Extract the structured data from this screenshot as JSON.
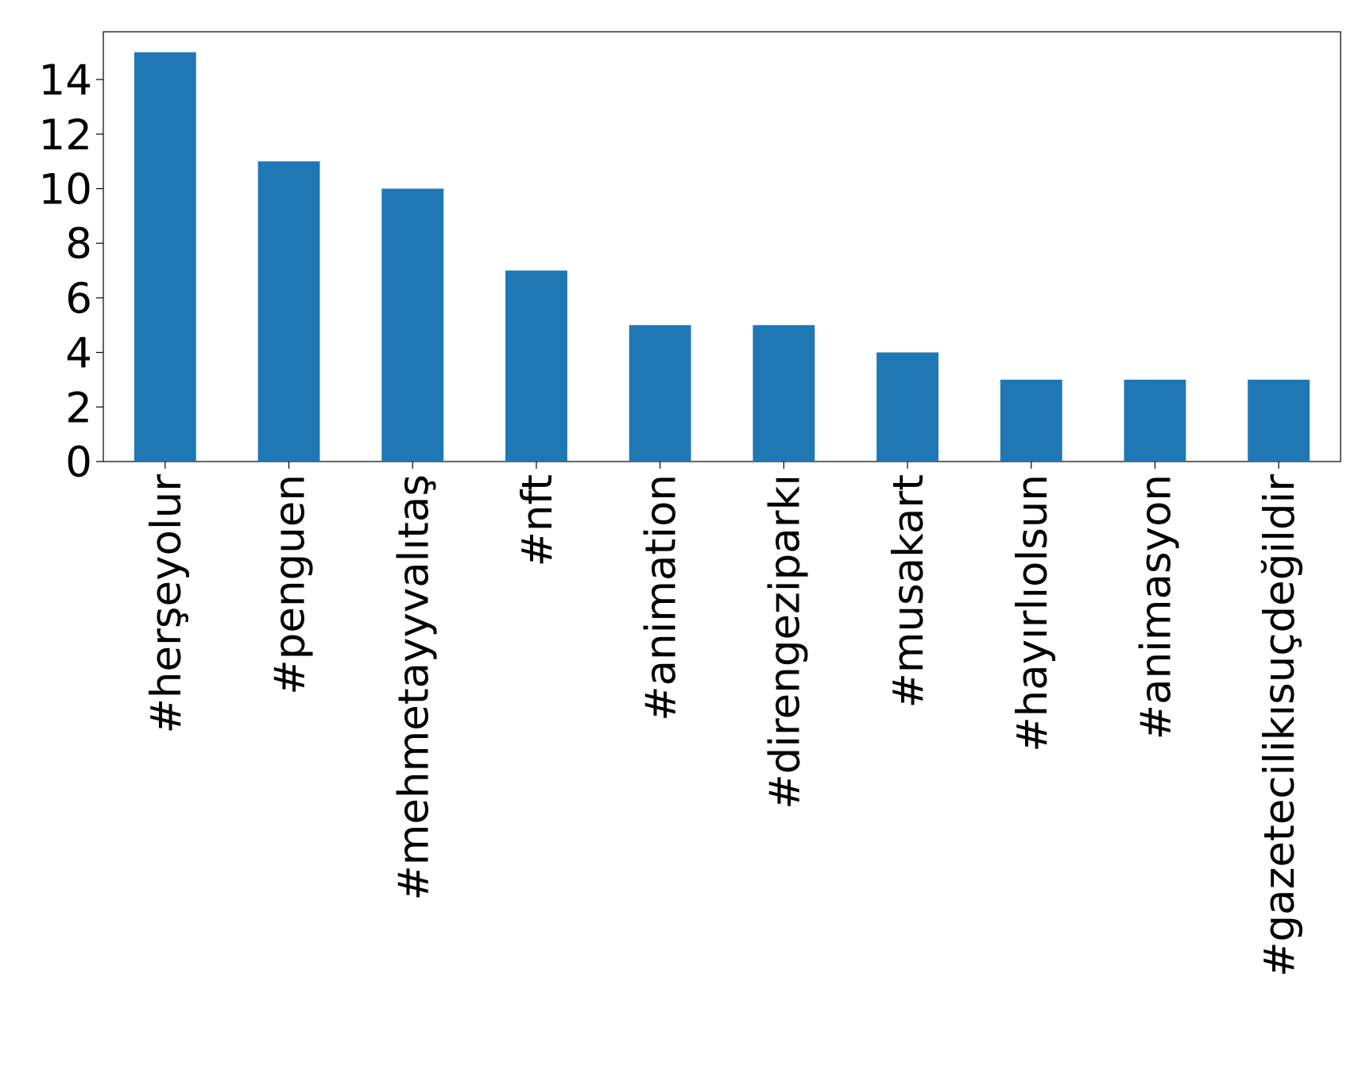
{
  "chart_data": {
    "type": "bar",
    "categories": [
      "#herşeyolur",
      "#penguen",
      "#mehmetayyvalıtaş",
      "#nft",
      "#animation",
      "#direngeziparkı",
      "#musakart",
      "#hayırlıolsun",
      "#animasyon",
      "#gazetecilikısuçdeğildir"
    ],
    "values": [
      15,
      11,
      10,
      7,
      5,
      5,
      4,
      3,
      3,
      3
    ],
    "color": "#1f77b4",
    "ylim": [
      0,
      15.75
    ],
    "yticks": [
      0,
      2,
      4,
      6,
      8,
      10,
      12,
      14
    ],
    "grid": false
  }
}
